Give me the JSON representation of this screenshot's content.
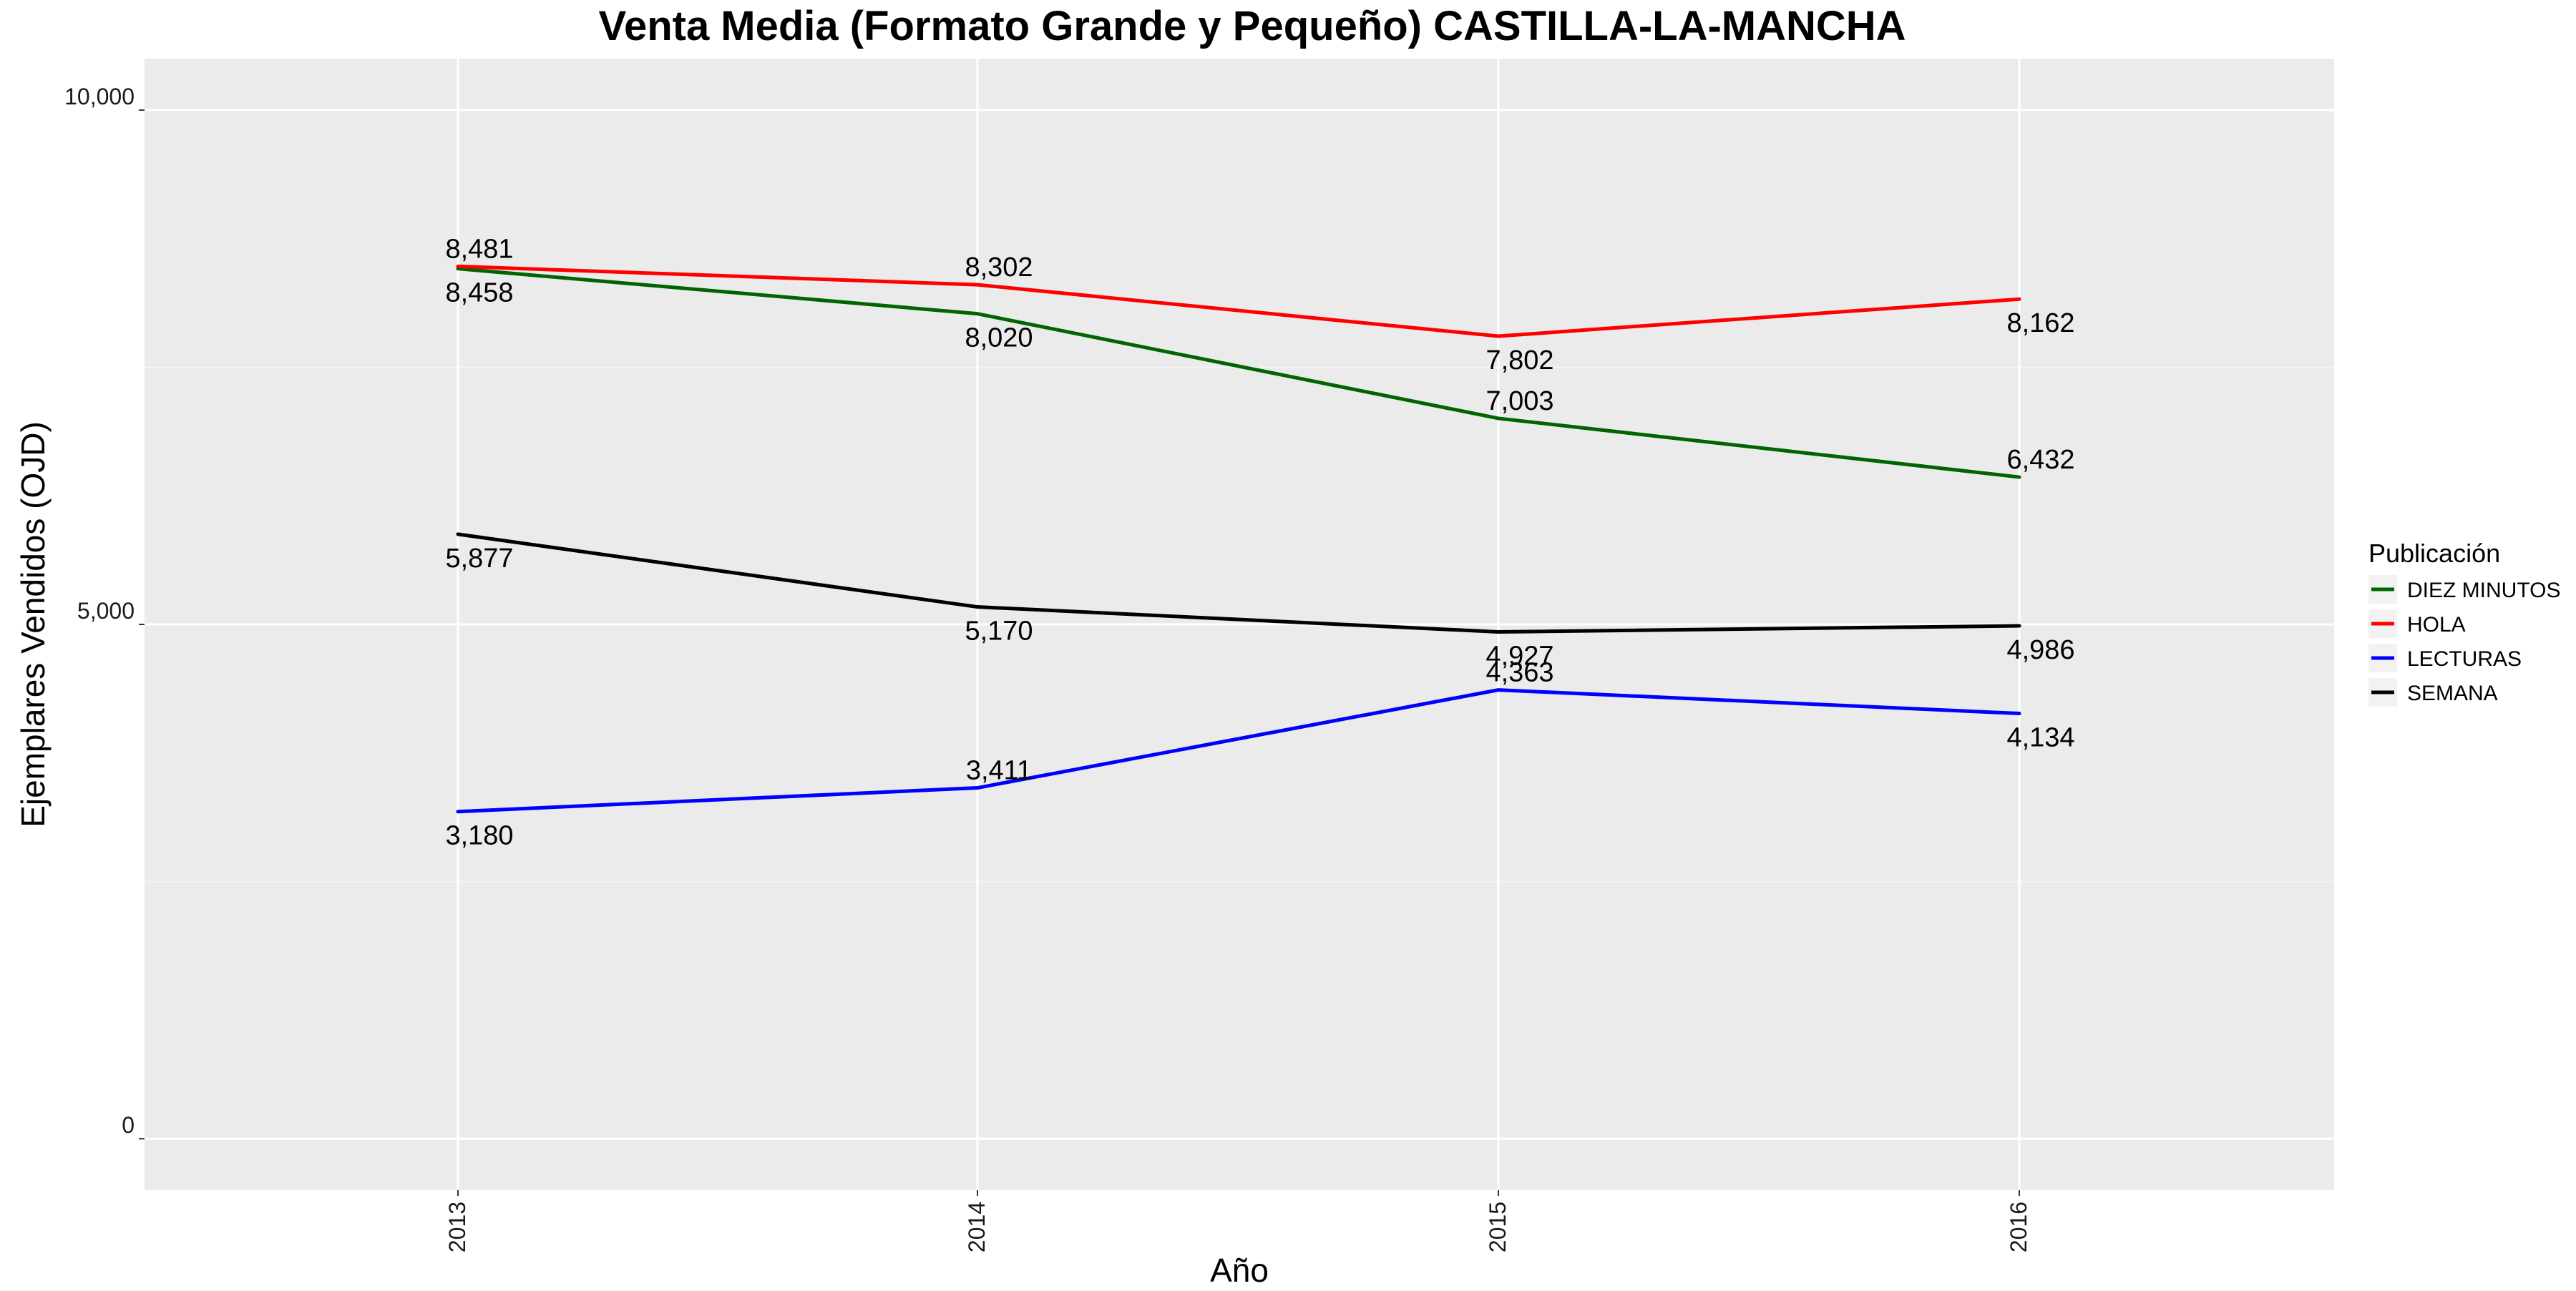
{
  "chart_data": {
    "type": "line",
    "title": "Venta Media (Formato Grande y Pequeño)  CASTILLA-LA-MANCHA",
    "xlabel": "Año",
    "ylabel": "Ejemplares Vendidos (OJD)",
    "categories": [
      "2013",
      "2014",
      "2015",
      "2016"
    ],
    "ylim": [
      -500,
      10500
    ],
    "yticks": [
      0,
      5000,
      10000
    ],
    "ytick_labels": [
      "0",
      "5,000",
      "10,000"
    ],
    "grid": true,
    "background": "#ebebeb",
    "legend": {
      "title": "Publicación",
      "placement": "right",
      "entries": [
        "DIEZ MINUTOS",
        "HOLA",
        "LECTURAS",
        "SEMANA"
      ]
    },
    "series": [
      {
        "name": "DIEZ MINUTOS",
        "color": "#006400",
        "values": [
          8458,
          8020,
          7003,
          6432
        ],
        "labels": [
          "8,458",
          "8,020",
          "7,003",
          "6,432"
        ],
        "label_pos": [
          "below",
          "below",
          "above",
          "above"
        ]
      },
      {
        "name": "HOLA",
        "color": "#ff0000",
        "values": [
          8481,
          8302,
          7802,
          8162
        ],
        "labels": [
          "8,481",
          "8,302",
          "7,802",
          "8,162"
        ],
        "label_pos": [
          "above",
          "above",
          "below",
          "below"
        ]
      },
      {
        "name": "LECTURAS",
        "color": "#0000ff",
        "values": [
          3180,
          3411,
          4363,
          4134
        ],
        "labels": [
          "3,180",
          "3,411",
          "4,363",
          "4,134"
        ],
        "label_pos": [
          "below",
          "above",
          "above",
          "below"
        ]
      },
      {
        "name": "SEMANA",
        "color": "#000000",
        "values": [
          5877,
          5170,
          4927,
          4986
        ],
        "labels": [
          "5,877",
          "5,170",
          "4,927",
          "4,986"
        ],
        "label_pos": [
          "below",
          "below",
          "below",
          "below"
        ]
      }
    ]
  }
}
